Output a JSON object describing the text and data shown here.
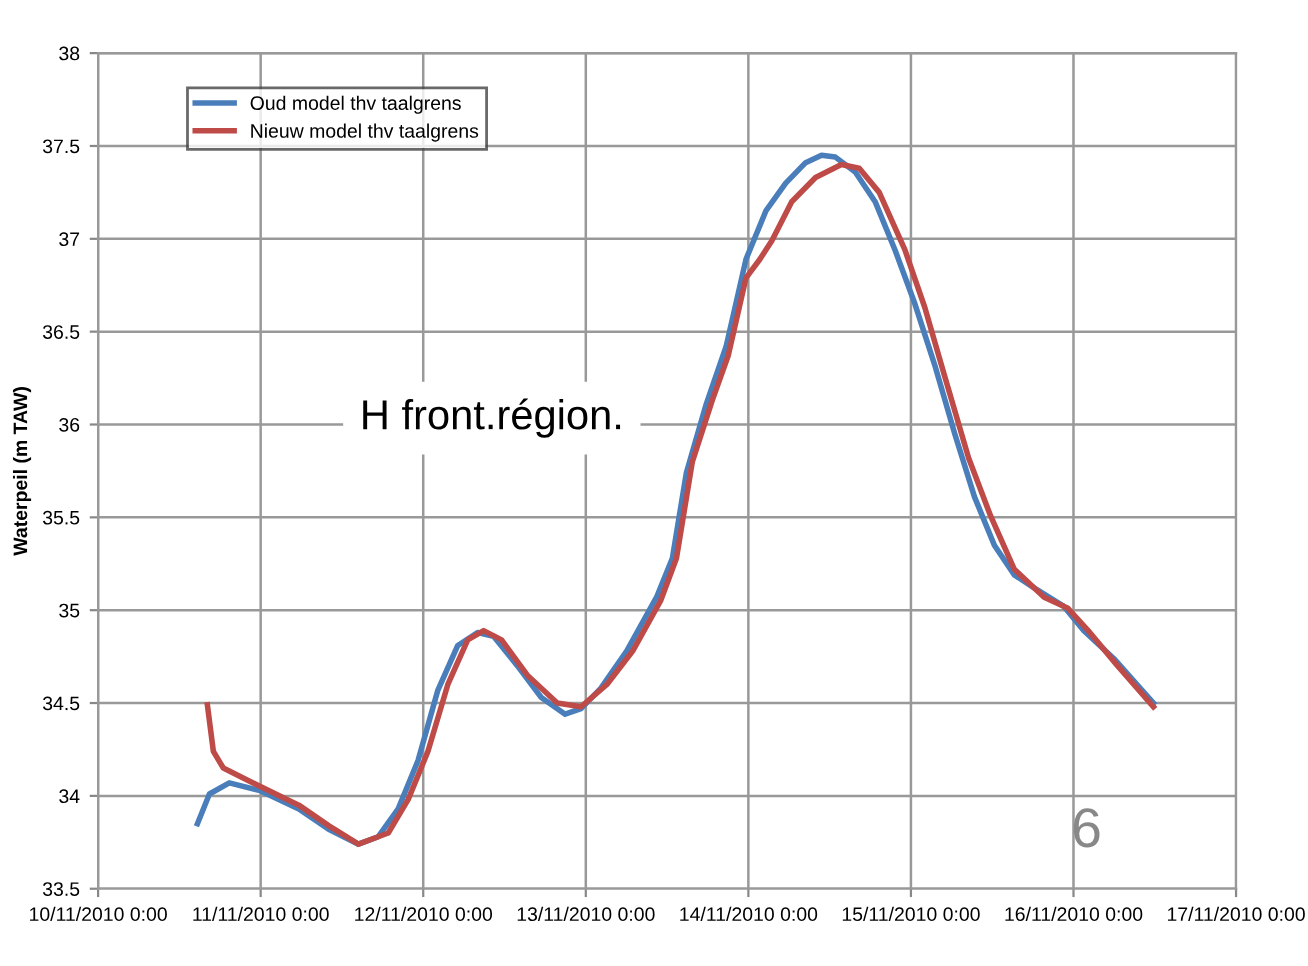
{
  "chart_data": {
    "type": "line",
    "ylabel": "Waterpeil (m TAW)",
    "annotations": [
      "H front.région.",
      "6"
    ],
    "xlim": [
      "2010-11-10",
      "2010-11-17"
    ],
    "xticks": [
      {
        "value": "2010-11-10",
        "label": "10/11/2010 0:00"
      },
      {
        "value": "2010-11-11",
        "label": "11/11/2010 0:00"
      },
      {
        "value": "2010-11-12",
        "label": "12/11/2010 0:00"
      },
      {
        "value": "2010-11-13",
        "label": "13/11/2010 0:00"
      },
      {
        "value": "2010-11-14",
        "label": "14/11/2010 0:00"
      },
      {
        "value": "2010-11-15",
        "label": "15/11/2010 0:00"
      },
      {
        "value": "2010-11-16",
        "label": "16/11/2010 0:00"
      },
      {
        "value": "2010-11-17",
        "label": "17/11/2010 0:00"
      }
    ],
    "ylim": [
      33.5,
      38
    ],
    "yticks": [
      33.5,
      34,
      34.5,
      35,
      35.5,
      36,
      36.5,
      37,
      37.5,
      38
    ],
    "grid": true,
    "legend": "top left",
    "marker": "none",
    "line_style": "solid",
    "series": [
      {
        "name": "Oud model thv taalgrens",
        "color": "#4a7ebb",
        "x": [
          "2010-11-10T14:40",
          "2010-11-10T16:26",
          "2010-11-10T19:22",
          "2010-11-10T23:46",
          "2010-11-11T05:38",
          "2010-11-11T10:02",
          "2010-11-11T14:26",
          "2010-11-11T17:22",
          "2010-11-11T20:18",
          "2010-11-11T23:14",
          "2010-11-12T02:10",
          "2010-11-12T05:06",
          "2010-11-12T08:02",
          "2010-11-12T10:23",
          "2010-11-12T13:55",
          "2010-11-12T17:26",
          "2010-11-12T20:57",
          "2010-11-12T23:18",
          "2010-11-13T02:14",
          "2010-11-13T06:02",
          "2010-11-13T10:27",
          "2010-11-13T12:47",
          "2010-11-13T14:51",
          "2010-11-13T17:47",
          "2010-11-13T20:43",
          "2010-11-13T23:39",
          "2010-11-14T02:35",
          "2010-11-14T05:31",
          "2010-11-14T08:27",
          "2010-11-14T10:48",
          "2010-11-14T12:51",
          "2010-11-14T15:47",
          "2010-11-14T18:43",
          "2010-11-14T21:39",
          "2010-11-15T00:35",
          "2010-11-15T03:31",
          "2010-11-15T06:28",
          "2010-11-15T09:23",
          "2010-11-15T12:19",
          "2010-11-15T15:16",
          "2010-11-15T18:11",
          "2010-11-15T22:35",
          "2010-11-16T01:32",
          "2010-11-16T05:56",
          "2010-11-16T11:48"
        ],
        "values": [
          33.85,
          34.01,
          34.07,
          34.03,
          33.93,
          33.82,
          33.74,
          33.78,
          33.93,
          34.19,
          34.57,
          34.81,
          34.88,
          34.86,
          34.7,
          34.53,
          34.44,
          34.47,
          34.58,
          34.78,
          35.07,
          35.28,
          35.74,
          36.11,
          36.42,
          36.89,
          37.15,
          37.3,
          37.41,
          37.45,
          37.44,
          37.36,
          37.2,
          36.94,
          36.65,
          36.32,
          35.95,
          35.61,
          35.35,
          35.19,
          35.12,
          35.02,
          34.89,
          34.74,
          34.5
        ]
      },
      {
        "name": "Nieuw model thv taalgrens",
        "color": "#be4b48",
        "x": [
          "2010-11-10T16:08",
          "2010-11-10T17:01",
          "2010-11-10T18:29",
          "2010-11-10T22:18",
          "2010-11-11T05:38",
          "2010-11-11T10:02",
          "2010-11-11T14:26",
          "2010-11-11T18:50",
          "2010-11-11T21:46",
          "2010-11-12T00:42",
          "2010-11-12T03:38",
          "2010-11-12T06:34",
          "2010-11-12T08:55",
          "2010-11-12T11:34",
          "2010-11-12T15:22",
          "2010-11-12T19:47",
          "2010-11-12T23:18",
          "2010-11-13T03:07",
          "2010-11-13T06:55",
          "2010-11-13T11:02",
          "2010-11-13T13:23",
          "2010-11-13T15:44",
          "2010-11-13T18:40",
          "2010-11-13T21:01",
          "2010-11-13T23:39",
          "2010-11-14T01:42",
          "2010-11-14T03:28",
          "2010-11-14T06:24",
          "2010-11-14T09:55",
          "2010-11-14T13:44",
          "2010-11-14T16:22",
          "2010-11-14T19:19",
          "2010-11-14T23:07",
          "2010-11-15T02:03",
          "2010-11-15T04:59",
          "2010-11-15T08:31",
          "2010-11-15T11:44",
          "2010-11-15T15:16",
          "2010-11-15T19:40",
          "2010-11-15T23:11",
          "2010-11-16T02:24",
          "2010-11-16T06:31",
          "2010-11-16T11:48"
        ],
        "values": [
          34.49,
          34.24,
          34.15,
          34.08,
          33.95,
          33.84,
          33.74,
          33.8,
          33.98,
          34.24,
          34.6,
          34.84,
          34.89,
          34.84,
          34.65,
          34.5,
          34.48,
          34.6,
          34.78,
          35.05,
          35.28,
          35.8,
          36.13,
          36.37,
          36.79,
          36.89,
          36.99,
          37.2,
          37.33,
          37.4,
          37.38,
          37.25,
          36.94,
          36.63,
          36.26,
          35.82,
          35.51,
          35.22,
          35.07,
          35.01,
          34.88,
          34.7,
          34.48
        ]
      }
    ]
  }
}
